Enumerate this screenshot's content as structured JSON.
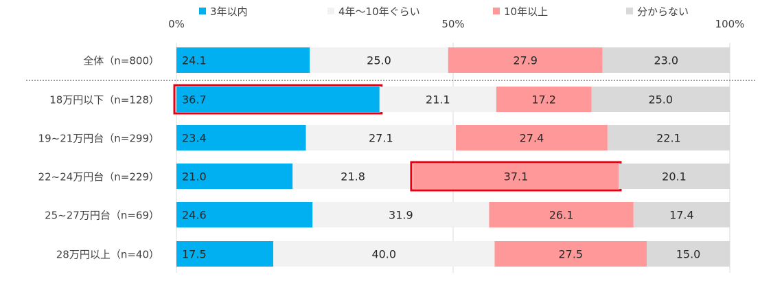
{
  "chart_data": {
    "type": "bar",
    "orientation": "horizontal",
    "stacked": "percent",
    "axis_ticks": [
      "0%",
      "50%",
      "100%"
    ],
    "xlim": [
      0,
      100
    ],
    "legend_position": "top",
    "colors": {
      "3年以内": "#00b0f0",
      "4年～10年ぐらい": "#f2f2f2",
      "10年以上": "#ff9999",
      "分からない": "#d9d9d9",
      "highlight": "#e60012"
    },
    "categories": [
      "全体（n=800）",
      "18万円以下（n=128）",
      "19~21万円台（n=299）",
      "22~24万円台（n=229）",
      "25~27万円台（n=69）",
      "28万円以上（n=40）"
    ],
    "series": [
      {
        "name": "3年以内",
        "values": [
          24.1,
          36.7,
          23.4,
          21.0,
          24.6,
          17.5
        ]
      },
      {
        "name": "4年～10年ぐらい",
        "values": [
          25.0,
          21.1,
          27.1,
          21.8,
          31.9,
          40.0
        ]
      },
      {
        "name": "10年以上",
        "values": [
          27.9,
          17.2,
          27.4,
          37.1,
          26.1,
          27.5
        ]
      },
      {
        "name": "分からない",
        "values": [
          23.0,
          25.0,
          22.1,
          20.1,
          17.4,
          15.0
        ]
      }
    ],
    "highlights": [
      {
        "category": "18万円以下（n=128）",
        "series": "3年以内"
      },
      {
        "category": "22~24万円台（n=229）",
        "series": "10年以上"
      }
    ]
  }
}
